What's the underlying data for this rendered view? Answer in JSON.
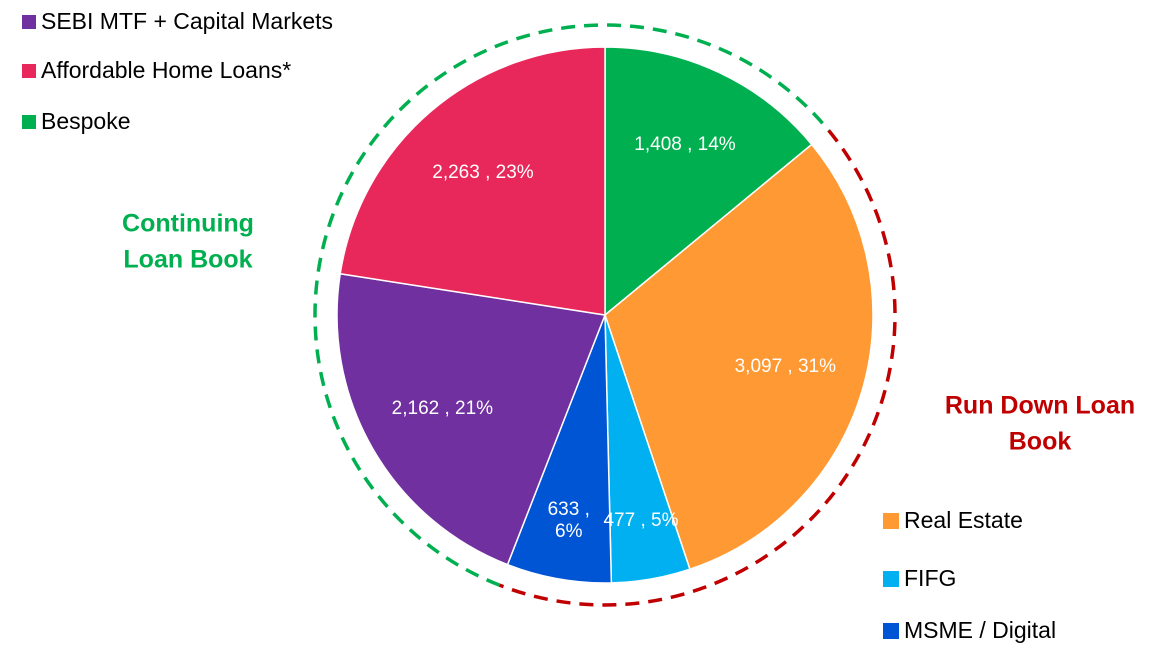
{
  "chart_data": {
    "type": "pie",
    "categories": [
      "Bespoke",
      "Real Estate",
      "FIFG",
      "MSME / Digital",
      "SEBI MTF + Capital Markets",
      "Affordable Home Loans*"
    ],
    "values": [
      1408,
      3097,
      477,
      633,
      2162,
      2263
    ],
    "value_labels": [
      "1,408 , 14%",
      "3,097 , 31%",
      "477 , 5%",
      "633 , 6%",
      "2,162 , 21%",
      "2,263 , 23%"
    ],
    "colors": [
      "#00b050",
      "#ff9933",
      "#00b0f0",
      "#0055d4",
      "#7030a0",
      "#e8285a"
    ],
    "annotations": [
      {
        "lines": [
          "Continuing",
          "Loan Book"
        ],
        "color": "#00b050"
      },
      {
        "lines": [
          "Run Down Loan",
          "Book"
        ],
        "color": "#c00000"
      }
    ]
  }
}
